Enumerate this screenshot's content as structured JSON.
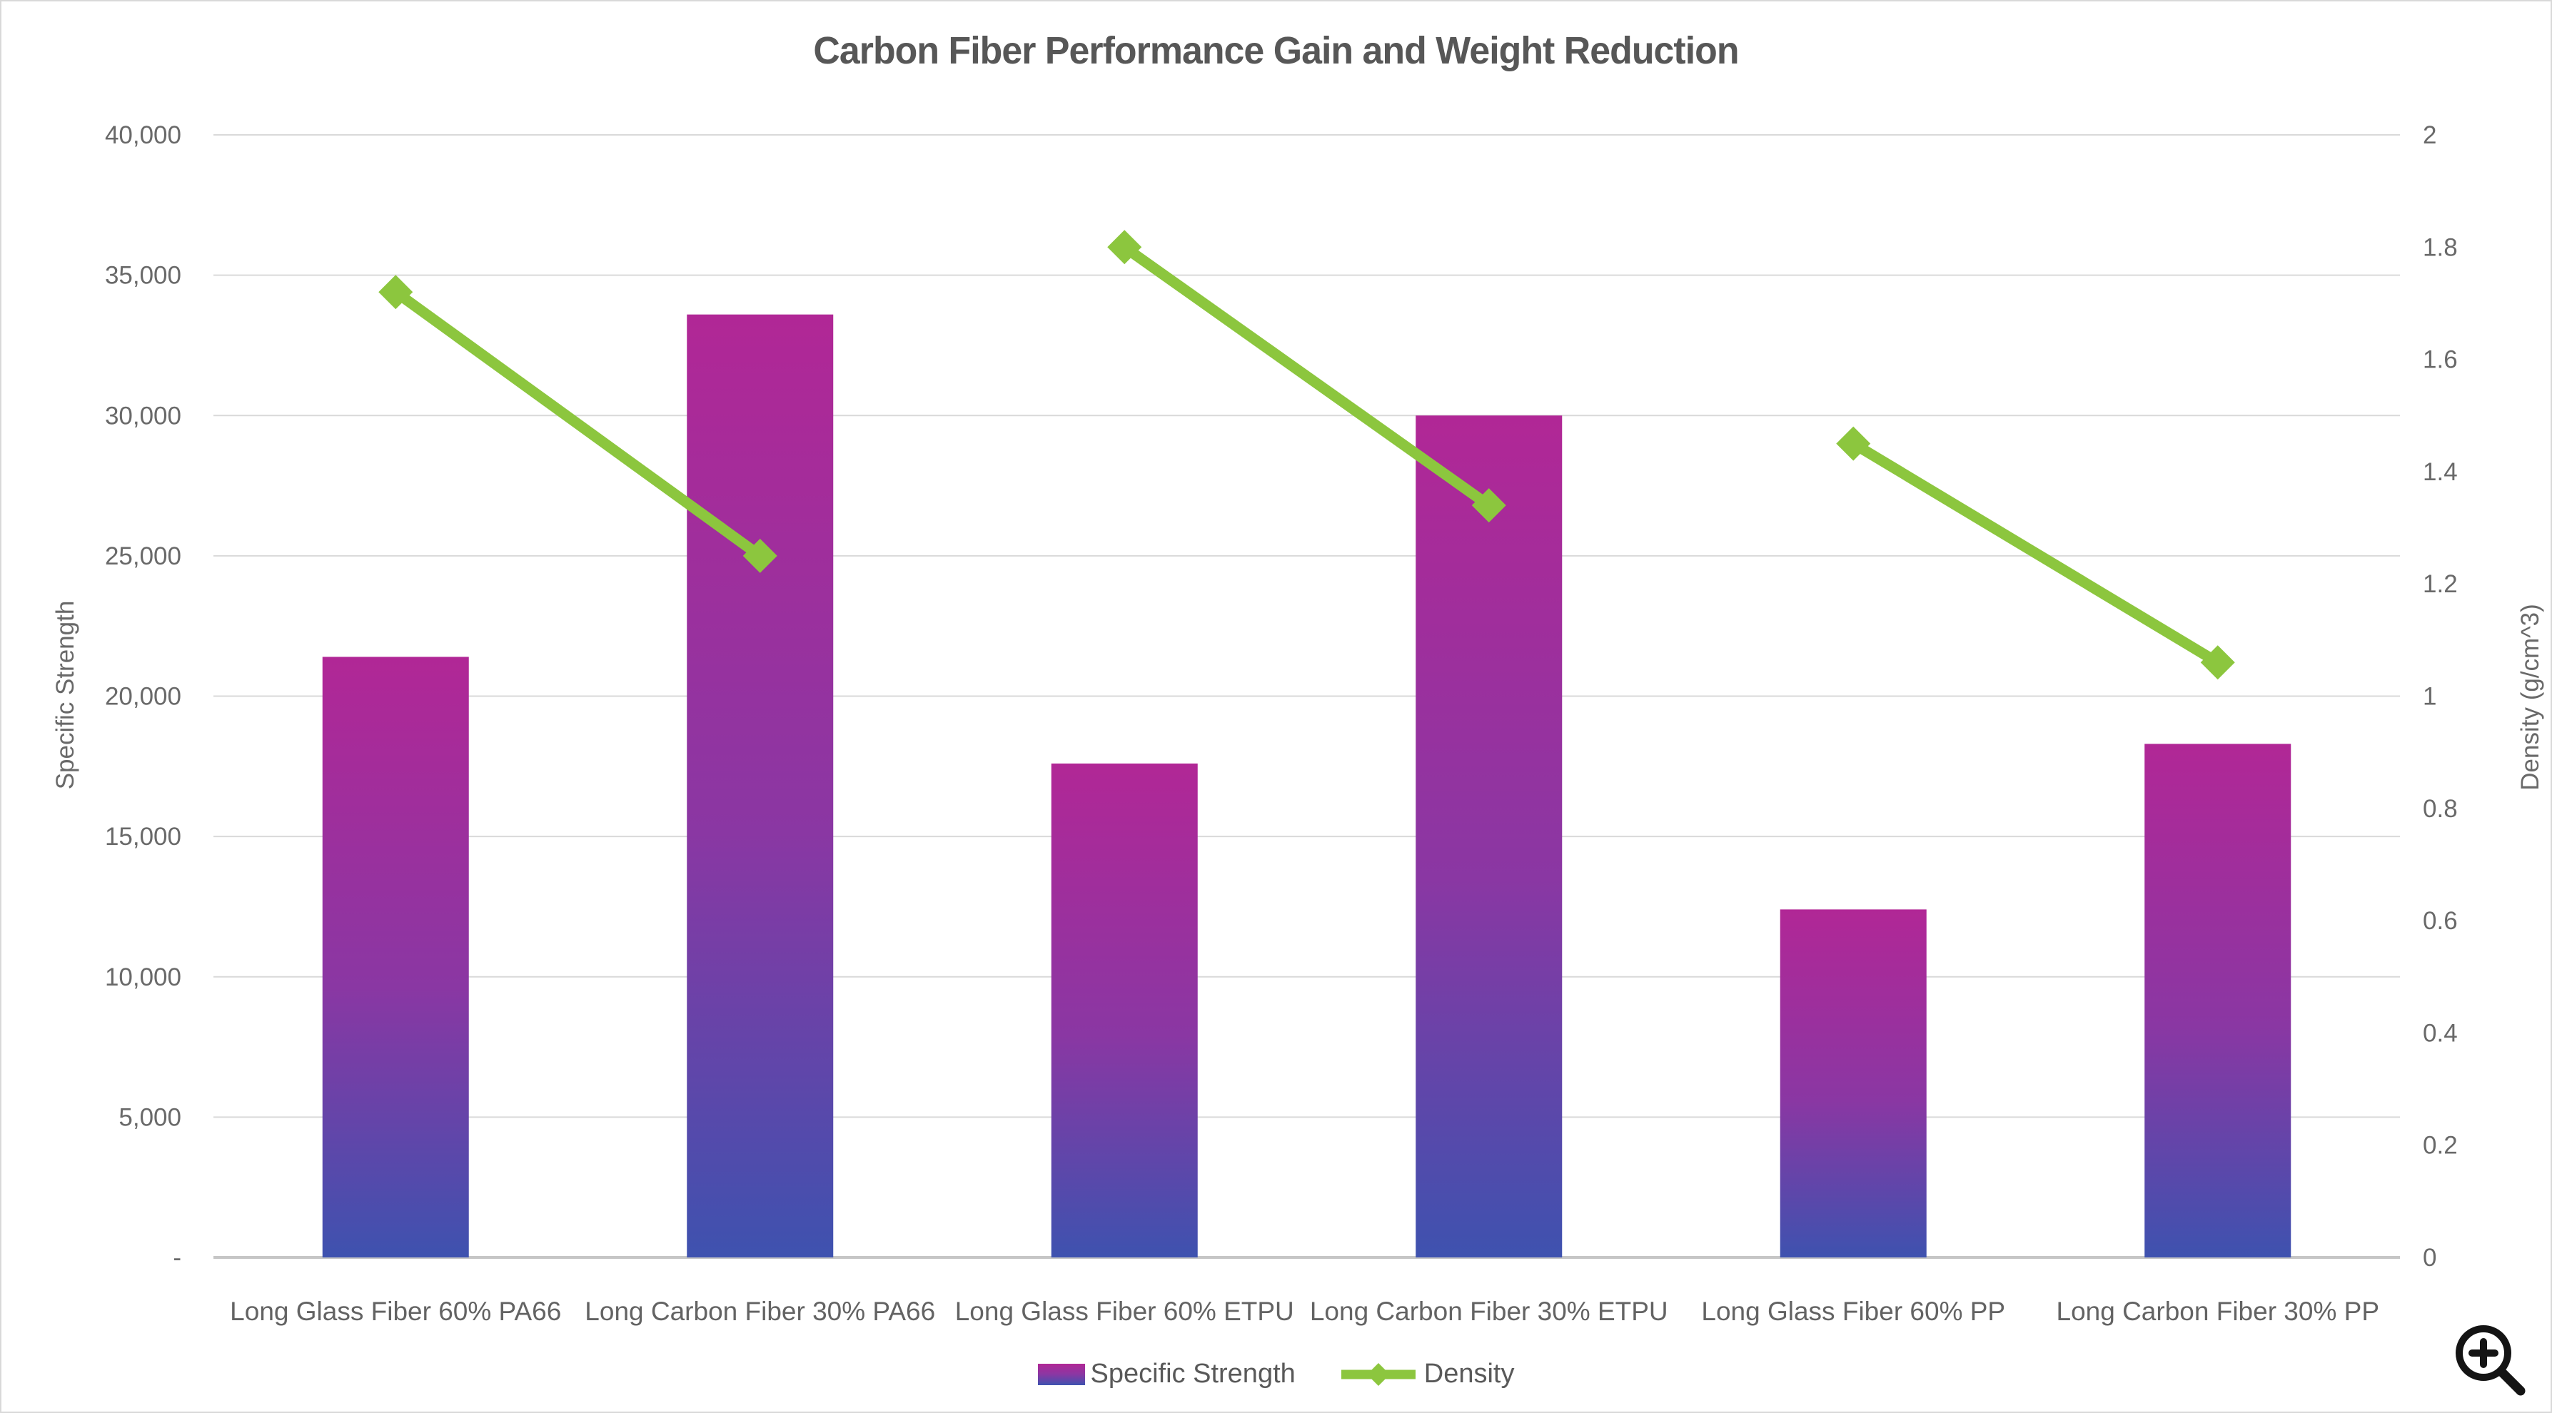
{
  "page": {
    "background": "#ffffff",
    "border_color": "#d9d9d9"
  },
  "title": "Carbon Fiber Performance Gain and Weight Reduction",
  "legend": {
    "items": [
      {
        "label": "Specific Strength",
        "swatch": "gradient-bar"
      },
      {
        "label": "Density",
        "swatch": "green-line-diamond"
      }
    ]
  },
  "icons": {
    "zoom_in": "magnifier-with-plus"
  },
  "chart_data": {
    "type": "bar",
    "subtype": "combo-bar-line-dual-axis",
    "title": "Carbon Fiber Performance Gain and Weight Reduction",
    "categories": [
      "Long Glass Fiber 60% PA66",
      "Long Carbon Fiber 30% PA66",
      "Long Glass Fiber 60% ETPU",
      "Long Carbon Fiber 30% ETPU",
      "Long Glass Fiber 60% PP",
      "Long Carbon Fiber 30% PP"
    ],
    "series": [
      {
        "name": "Specific Strength",
        "type": "bar",
        "axis": "left",
        "values": [
          21400,
          33600,
          17600,
          30000,
          12400,
          18300
        ],
        "bar_gradient": [
          "#b12796",
          "#8a37a3",
          "#3e52af"
        ]
      },
      {
        "name": "Density",
        "type": "line",
        "axis": "right",
        "values": [
          1.72,
          1.25,
          1.8,
          1.34,
          1.45,
          1.06
        ],
        "segment_pairs": [
          [
            0,
            1
          ],
          [
            2,
            3
          ],
          [
            4,
            5
          ]
        ],
        "color": "#8cc63e",
        "marker": "diamond"
      }
    ],
    "left_axis": {
      "title": "Specific Strength",
      "min": 0,
      "max": 40000,
      "tick_step": 5000,
      "tick_labels": [
        "-",
        "5,000",
        "10,000",
        "15,000",
        "20,000",
        "25,000",
        "30,000",
        "35,000",
        "40,000"
      ]
    },
    "right_axis": {
      "title": "Density (g/cm^3)",
      "min": 0,
      "max": 2,
      "tick_step": 0.2,
      "tick_labels": [
        "0",
        "0.2",
        "0.4",
        "0.6",
        "0.8",
        "1",
        "1.2",
        "1.4",
        "1.6",
        "1.8",
        "2"
      ]
    },
    "grid": "horizontal",
    "legend_position": "bottom-center",
    "colors": {
      "gridline": "#d9d9d9",
      "axis_line": "#c6c6c6",
      "tick_text": "#696969",
      "title_text": "#575757"
    }
  }
}
